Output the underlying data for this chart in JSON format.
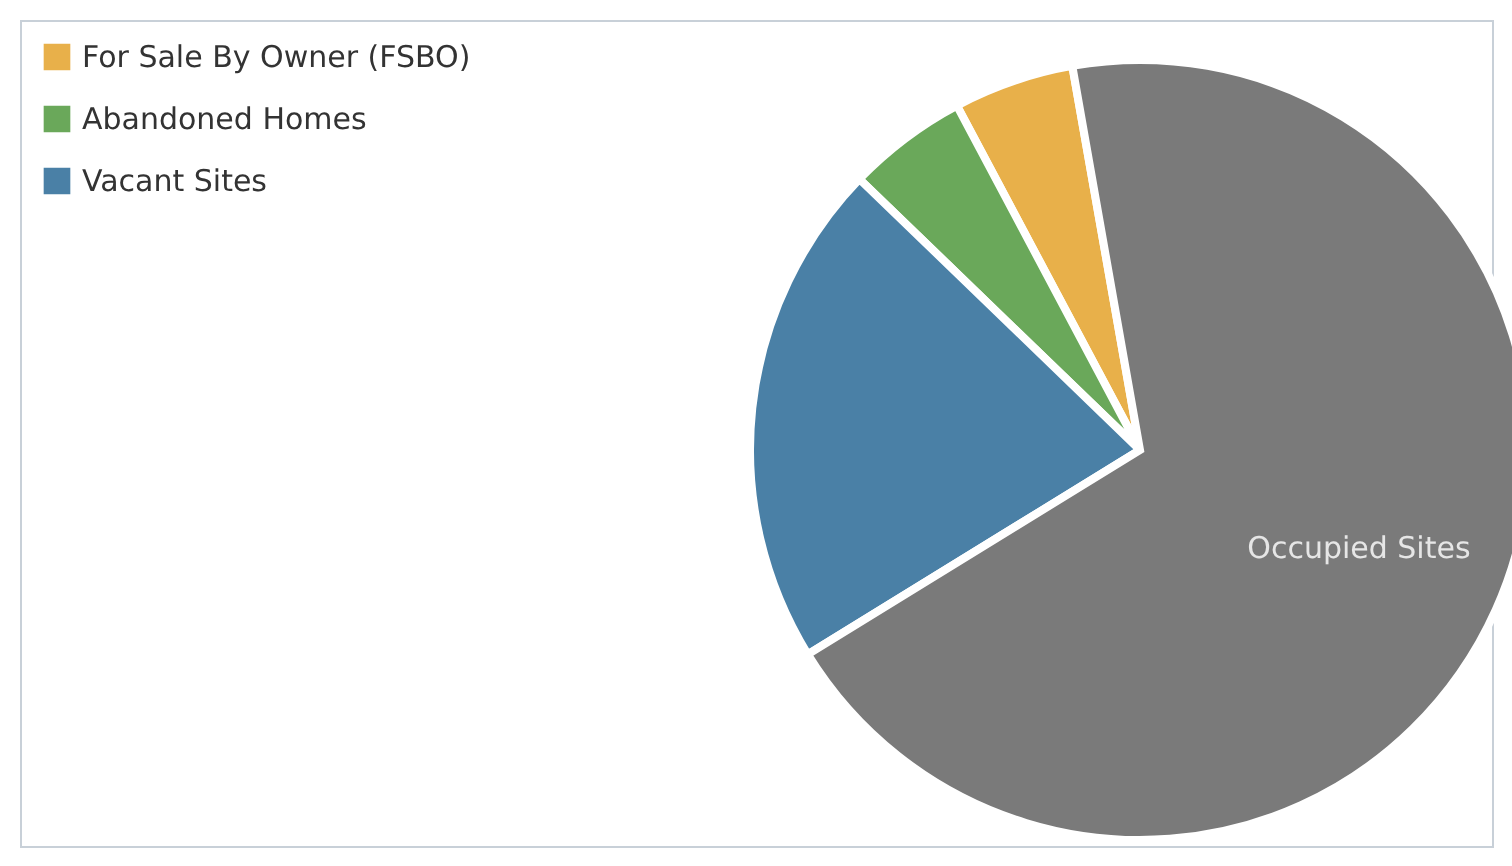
{
  "chart_data": {
    "type": "pie",
    "categories": [
      "For Sale By Owner (FSBO)",
      "Abandoned Homes",
      "Vacant Sites",
      "Occupied Sites"
    ],
    "values": [
      5,
      5,
      21,
      69
    ],
    "colors": [
      "#e8b04a",
      "#6aa85a",
      "#4a80a6",
      "#7a7a7a"
    ],
    "legend": "top left"
  }
}
